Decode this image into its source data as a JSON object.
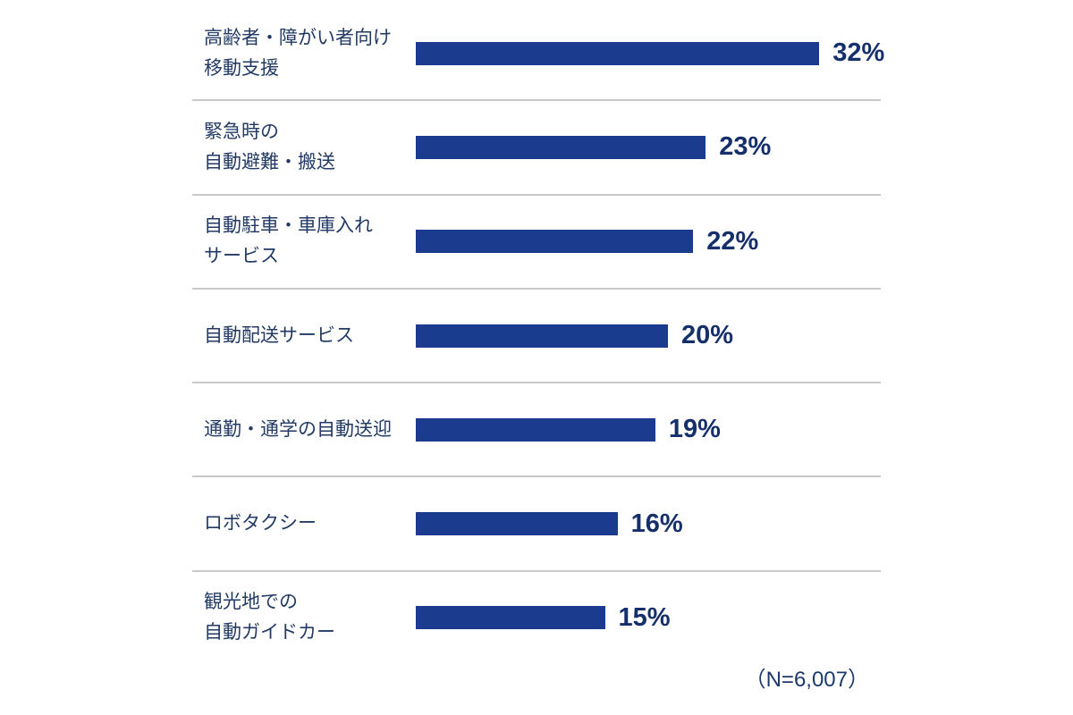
{
  "chart_data": {
    "type": "bar",
    "orientation": "horizontal",
    "title": "",
    "xlabel": "",
    "ylabel": "",
    "categories": [
      "高齢者・障がい者向け 移動支援",
      "緊急時の 自動避難・搬送",
      "自動駐車・車庫入れ サービス",
      "自動配送サービス",
      "通勤・通学の自動送迎",
      "ロボタクシー",
      "観光地での 自動ガイドカー"
    ],
    "values": [
      32,
      23,
      22,
      20,
      19,
      16,
      15
    ],
    "value_labels": [
      "32%",
      "23%",
      "22%",
      "20%",
      "19%",
      "16%",
      "15%"
    ],
    "xlim": [
      0,
      36
    ],
    "grid": false,
    "legend": false,
    "bar_color": "#1b3b8f",
    "note": "（N=6,007）"
  },
  "rows": [
    {
      "label": "高齢者・障がい者向け\n移動支援",
      "pct": "32%"
    },
    {
      "label": "緊急時の\n自動避難・搬送",
      "pct": "23%"
    },
    {
      "label": "自動駐車・車庫入れ\nサービス",
      "pct": "22%"
    },
    {
      "label": "自動配送サービス",
      "pct": "20%"
    },
    {
      "label": "通勤・通学の自動送迎",
      "pct": "19%"
    },
    {
      "label": "ロボタクシー",
      "pct": "16%"
    },
    {
      "label": "観光地での\n自動ガイドカー",
      "pct": "15%"
    }
  ],
  "footnote": "（N=6,007）",
  "colors": {
    "bar": "#1b3b8f",
    "label_text": "#223a64",
    "value_text": "#152f6b",
    "separator": "#c9c9c9",
    "background": "#ffffff"
  }
}
